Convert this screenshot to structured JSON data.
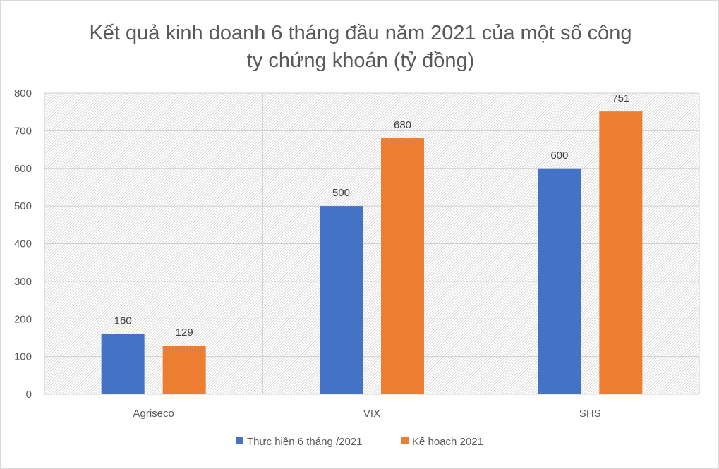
{
  "chart_data": {
    "type": "bar",
    "title_lines": [
      "Kết quả kinh doanh 6 tháng đầu năm 2021 của một số công",
      "ty chứng khoán (tỷ đồng)"
    ],
    "categories": [
      "Agriseco",
      "VIX",
      "SHS"
    ],
    "series": [
      {
        "name": "Thực hiện 6 tháng /2021",
        "values": [
          160,
          500,
          600
        ],
        "color": "#4472C4"
      },
      {
        "name": "Kế hoạch 2021",
        "values": [
          129,
          680,
          751
        ],
        "color": "#ED7D31"
      }
    ],
    "data_labels": [
      [
        "160",
        "500",
        "600"
      ],
      [
        "129",
        "680",
        "751"
      ]
    ],
    "ylim": [
      0,
      800
    ],
    "yticks": [
      "0",
      "100",
      "200",
      "300",
      "400",
      "500",
      "600",
      "700",
      "800"
    ],
    "xlabel": "",
    "ylabel": "",
    "grid": true,
    "legend_position": "bottom"
  }
}
